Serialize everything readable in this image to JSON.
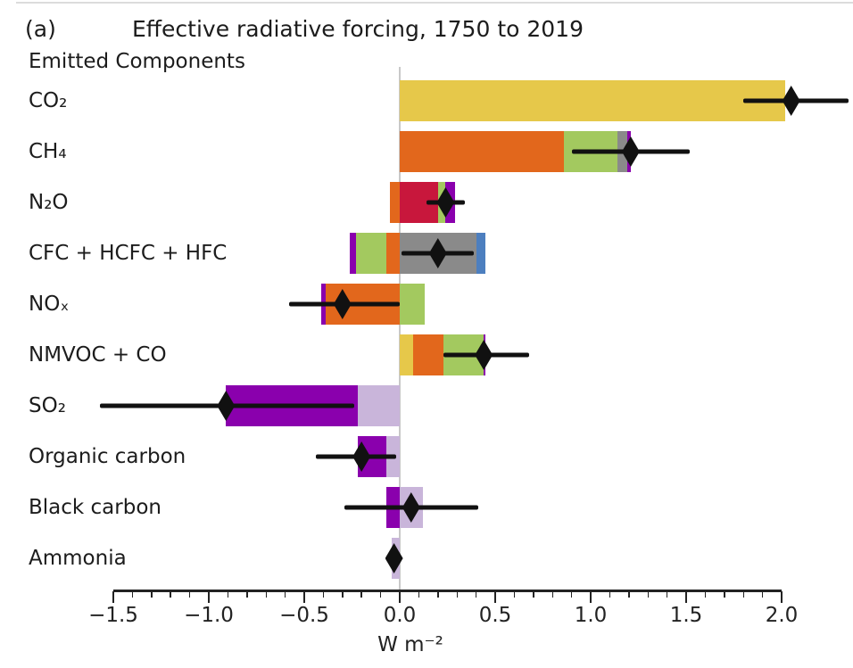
{
  "panel_label": "(a)",
  "title": "Effective radiative forcing, 1750 to 2019",
  "subtitle": "Emitted Components",
  "xlabel": "W m⁻²",
  "colors": {
    "gold": "#e6c84a",
    "orange": "#e2671c",
    "green": "#a3c95f",
    "gray": "#8a8a8a",
    "violet": "#8a00ad",
    "crimson": "#c8173c",
    "blue": "#4d7fbf",
    "lavender": "#c9b5da",
    "marker": "#111111",
    "zero_line": "#c9c9c9",
    "axis": "#222222"
  },
  "chart_data": {
    "type": "bar",
    "orientation": "horizontal-stacked",
    "title": "Effective radiative forcing, 1750 to 2019",
    "xlabel": "W m⁻²",
    "xlim": [
      -1.7,
      2.37
    ],
    "grid": false,
    "axis_ticks": [
      {
        "v": -1.5,
        "label": "−1.5"
      },
      {
        "v": -1.0,
        "label": "−1.0"
      },
      {
        "v": -0.5,
        "label": "−0.5"
      },
      {
        "v": 0.0,
        "label": "0.0"
      },
      {
        "v": 0.5,
        "label": "0.5"
      },
      {
        "v": 1.0,
        "label": "1.0"
      },
      {
        "v": 1.5,
        "label": "1.5"
      },
      {
        "v": 2.0,
        "label": "2.0"
      }
    ],
    "minor_tick_step": 0.1,
    "rows": [
      {
        "label": "CO₂",
        "total": 2.05,
        "error": [
          1.8,
          2.35
        ],
        "segments": [
          {
            "color": "gold",
            "from": 0,
            "to": 2.02
          }
        ]
      },
      {
        "label": "CH₄",
        "total": 1.21,
        "error": [
          0.9,
          1.52
        ],
        "segments": [
          {
            "color": "orange",
            "from": 0,
            "to": 0.86
          },
          {
            "color": "green",
            "from": 0.86,
            "to": 1.14
          },
          {
            "color": "gray",
            "from": 1.14,
            "to": 1.19
          },
          {
            "color": "violet",
            "from": 1.19,
            "to": 1.21
          }
        ]
      },
      {
        "label": "N₂O",
        "total": 0.24,
        "error": [
          0.14,
          0.34
        ],
        "segments": [
          {
            "color": "orange",
            "from": -0.05,
            "to": 0
          },
          {
            "color": "crimson",
            "from": 0,
            "to": 0.2
          },
          {
            "color": "green",
            "from": 0.2,
            "to": 0.24
          },
          {
            "color": "violet",
            "from": 0.24,
            "to": 0.29
          }
        ]
      },
      {
        "label": "CFC + HCFC + HFC",
        "total": 0.2,
        "error": [
          0.01,
          0.39
        ],
        "segments": [
          {
            "color": "violet",
            "from": -0.26,
            "to": -0.23
          },
          {
            "color": "green",
            "from": -0.23,
            "to": -0.07
          },
          {
            "color": "orange",
            "from": -0.07,
            "to": 0
          },
          {
            "color": "gray",
            "from": 0,
            "to": 0.4
          },
          {
            "color": "blue",
            "from": 0.4,
            "to": 0.45
          }
        ]
      },
      {
        "label": "NOₓ",
        "total": -0.3,
        "error": [
          -0.58,
          0.0
        ],
        "segments": [
          {
            "color": "violet",
            "from": -0.41,
            "to": -0.39
          },
          {
            "color": "orange",
            "from": -0.39,
            "to": 0
          },
          {
            "color": "green",
            "from": 0,
            "to": 0.13
          }
        ]
      },
      {
        "label": "NMVOC + CO",
        "total": 0.44,
        "error": [
          0.23,
          0.68
        ],
        "segments": [
          {
            "color": "gold",
            "from": 0,
            "to": 0.07
          },
          {
            "color": "orange",
            "from": 0.07,
            "to": 0.23
          },
          {
            "color": "green",
            "from": 0.23,
            "to": 0.44
          },
          {
            "color": "violet",
            "from": 0.44,
            "to": 0.45
          }
        ]
      },
      {
        "label": "SO₂",
        "total": -0.91,
        "error": [
          -1.57,
          -0.24
        ],
        "segments": [
          {
            "color": "violet",
            "from": -0.91,
            "to": -0.22
          },
          {
            "color": "lavender",
            "from": -0.22,
            "to": 0
          }
        ]
      },
      {
        "label": "Organic carbon",
        "total": -0.2,
        "error": [
          -0.44,
          -0.02
        ],
        "segments": [
          {
            "color": "violet",
            "from": -0.22,
            "to": -0.07
          },
          {
            "color": "lavender",
            "from": -0.07,
            "to": 0
          }
        ]
      },
      {
        "label": "Black carbon",
        "total": 0.06,
        "error": [
          -0.29,
          0.41
        ],
        "segments": [
          {
            "color": "violet",
            "from": -0.07,
            "to": 0
          },
          {
            "color": "lavender",
            "from": 0,
            "to": 0.12
          }
        ]
      },
      {
        "label": "Ammonia",
        "total": -0.03,
        "error": [
          -0.06,
          -0.01
        ],
        "segments": [
          {
            "color": "lavender",
            "from": -0.04,
            "to": 0
          }
        ]
      }
    ]
  }
}
